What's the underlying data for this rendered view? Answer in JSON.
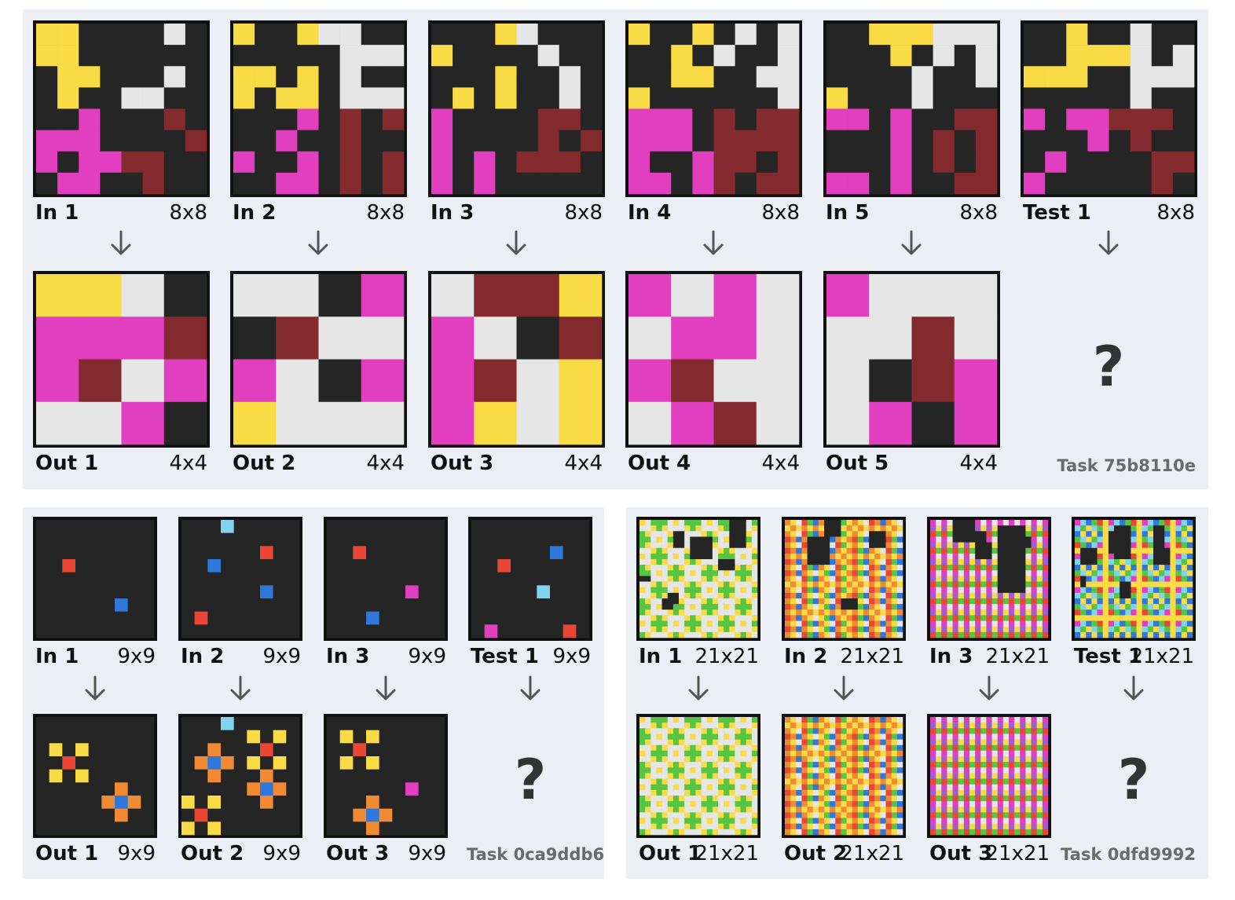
{
  "colors": {
    "K": "#252525",
    "Y": "#f9db45",
    "W": "#e6e6e6",
    "M": "#e23ec0",
    "R": "#832a2e",
    "E": "#ea4636",
    "B": "#2f78d9",
    "C": "#80d4ee",
    "O": "#f08a33",
    "G": "#56c543",
    "P": "#9e5dd6"
  },
  "tasks": [
    {
      "name": "Task 75b8110e",
      "test_prompt": "?",
      "pairs": [
        {
          "in_label": "In 1",
          "in_dim": "8x8",
          "out_label": "Out 1",
          "out_dim": "4x4",
          "input": [
            "YYKKKKWK",
            "YYKKKKKK",
            "KYYKKKWK",
            "KYKKWWKK",
            "KKMKKKRK",
            "MMMKKKKR",
            "MKMMRRKK",
            "KMMKKRKK"
          ],
          "output": [
            "YYWK",
            "MMMR",
            "MRWM",
            "WWMK"
          ]
        },
        {
          "in_label": "In 2",
          "in_dim": "8x8",
          "out_label": "Out 2",
          "out_dim": "4x4",
          "input": [
            "YKKYWWKK",
            "KKKKKWWW",
            "YYKYKWKK",
            "YKYYKWWW",
            "KKKMKRKR",
            "KKMKKRKK",
            "MKKMKRKR",
            "KKMMKRKR"
          ],
          "output": [
            "WWKM",
            "KRWW",
            "MWKM",
            "YWWW"
          ]
        },
        {
          "in_label": "In 3",
          "in_dim": "8x8",
          "out_label": "Out 3",
          "out_dim": "4x4",
          "input": [
            "KKKYWKKK",
            "YKKKKWKK",
            "KKKYKKWK",
            "KYKYKKWK",
            "MKKKKRRK",
            "MKKKKRKR",
            "MKMKRRRK",
            "MKMKKKKK"
          ],
          "output": [
            "WRRY",
            "MWKR",
            "MRWY",
            "MYWY"
          ]
        },
        {
          "in_label": "In 4",
          "in_dim": "8x8",
          "out_label": "Out 4",
          "out_dim": "4x4",
          "input": [
            "YKKYKWKW",
            "KKYKWKKW",
            "KKYYKKWW",
            "YKKKKKKW",
            "MMMKRKRR",
            "MMMKRRRR",
            "MKKMRRKR",
            "MMKMRKRR"
          ],
          "output": [
            "MWMW",
            "WMMW",
            "MRWW",
            "WMRW"
          ]
        },
        {
          "in_label": "In 5",
          "in_dim": "8x8",
          "out_label": "Out 5",
          "out_dim": "4x4",
          "input": [
            "KKYYYWWW",
            "KKKYKWKW",
            "KKKKWKKW",
            "YKKKWKKK",
            "MMKMKKRR",
            "KKKMKRKR",
            "KKKMKRKR",
            "MMKMKKRR"
          ],
          "output": [
            "MWWW",
            "WWRW",
            "WKRM",
            "WMKM"
          ]
        },
        {
          "in_label": "Test 1",
          "in_dim": "8x8",
          "input": [
            "KKYKKWKK",
            "KKYYYWKW",
            "YYYKKWWW",
            "KKKKKWKK",
            "MKMMRRRK",
            "KKKMKRKK",
            "KMKKKKRR",
            "MKKKKKRK"
          ]
        }
      ]
    },
    {
      "name": "Task 0ca9ddb6",
      "test_prompt": "?",
      "pairs": [
        {
          "in_label": "In 1",
          "in_dim": "9x9",
          "out_label": "Out 1",
          "out_dim": "9x9",
          "input": [
            "KKKKKKKKK",
            "KKKKKKKKK",
            "KKKKKKKKK",
            "KKEKKKKKK",
            "KKKKKKKKK",
            "KKKKKKKKK",
            "KKKKKKBKK",
            "KKKKKKKKK",
            "KKKKKKKKK"
          ],
          "output": [
            "KKKKKKKKK",
            "KKKKKKKKK",
            "KYKYKKKKK",
            "KKEKKKKKK",
            "KYKYKKKKK",
            "KKKKKKOKK",
            "KKKKKOBOK",
            "KKKKKKOKK",
            "KKKKKKKKK"
          ]
        },
        {
          "in_label": "In 2",
          "in_dim": "9x9",
          "out_label": "Out 2",
          "out_dim": "9x9",
          "input": [
            "KKKCKKKKK",
            "KKKKKKKKK",
            "KKKKKKEKK",
            "KKBKKKKKK",
            "KKKKKKKKK",
            "KKKKKKBKK",
            "KKKKKKKKK",
            "KEKKKKKKK",
            "KKKKKKKKK"
          ],
          "output": [
            "KKKCKKKKK",
            "KKKKKYKYK",
            "KKOKKKEKK",
            "KOBOKYKYK",
            "KKOKKKOKK",
            "KKKKKOBOK",
            "YKYKKKOKK",
            "KEKKKKKKK",
            "YKYKKKKKK"
          ]
        },
        {
          "in_label": "In 3",
          "in_dim": "9x9",
          "out_label": "Out 3",
          "out_dim": "9x9",
          "input": [
            "KKKKKKKKK",
            "KKKKKKKKK",
            "KKEKKKKKK",
            "KKKKKKKKK",
            "KKKKKKKKK",
            "KKKKKKMKK",
            "KKKKKKKKK",
            "KKKBKKKKK",
            "KKKKKKKKK"
          ],
          "output": [
            "KKKKKKKKK",
            "KYKYKKKKK",
            "KKEKKKKKK",
            "KYKYKKKKK",
            "KKKKKKKKK",
            "KKKKKKMKK",
            "KKKOKKKKK",
            "KKOBOKKKK",
            "KKKOKKKKK"
          ]
        },
        {
          "in_label": "Test 1",
          "in_dim": "9x9",
          "input": [
            "KKKKKKKKK",
            "KKKKKKKKK",
            "KKKKKKBKK",
            "KKEKKKKKK",
            "KKKKKKKKK",
            "KKKKKCKKK",
            "KKKKKKKKK",
            "KKKKKKKKK",
            "KMKKKKKEK"
          ]
        }
      ]
    },
    {
      "name": "Task 0dfd9992",
      "test_prompt": "?",
      "pairs": [
        {
          "in_label": "In 1",
          "in_dim": "21x21",
          "out_label": "Out 1",
          "out_dim": "21x21",
          "pattern": "A",
          "holes": [
            [
              3,
              9,
              4,
              4
            ],
            [
              7,
              14,
              2,
              3
            ],
            [
              13,
              5,
              2,
              2
            ],
            [
              2,
              6,
              3,
              2
            ],
            [
              0,
              16,
              5,
              3
            ],
            [
              10,
              0,
              1,
              2
            ],
            [
              14,
              4,
              2,
              2
            ]
          ]
        },
        {
          "in_label": "In 2",
          "in_dim": "21x21",
          "out_label": "Out 2",
          "out_dim": "21x21",
          "pattern": "B",
          "holes": [
            [
              3,
              4,
              5,
              4
            ],
            [
              2,
              15,
              3,
              3
            ],
            [
              0,
              7,
              3,
              3
            ],
            [
              14,
              10,
              2,
              3
            ]
          ]
        },
        {
          "in_label": "In 3",
          "in_dim": "21x21",
          "out_label": "Out 3",
          "out_dim": "21x21",
          "pattern": "C",
          "holes": [
            [
              0,
              4,
              4,
              4
            ],
            [
              2,
              8,
              5,
              2
            ],
            [
              4,
              8,
              3,
              3
            ],
            [
              3,
              15,
              2,
              3
            ],
            [
              1,
              12,
              12,
              5
            ]
          ]
        },
        {
          "in_label": "Test 1",
          "in_dim": "21x21",
          "pattern": "D",
          "holes": [
            [
              10,
              1,
              2,
              1
            ],
            [
              4,
              7,
              3,
              3
            ],
            [
              1,
              7,
              3,
              3
            ],
            [
              11,
              8,
              3,
              2
            ],
            [
              5,
              1,
              3,
              3
            ],
            [
              1,
              14,
              4,
              2
            ],
            [
              2,
              6,
              4,
              3
            ],
            [
              5,
              14,
              3,
              3
            ]
          ]
        }
      ]
    }
  ]
}
